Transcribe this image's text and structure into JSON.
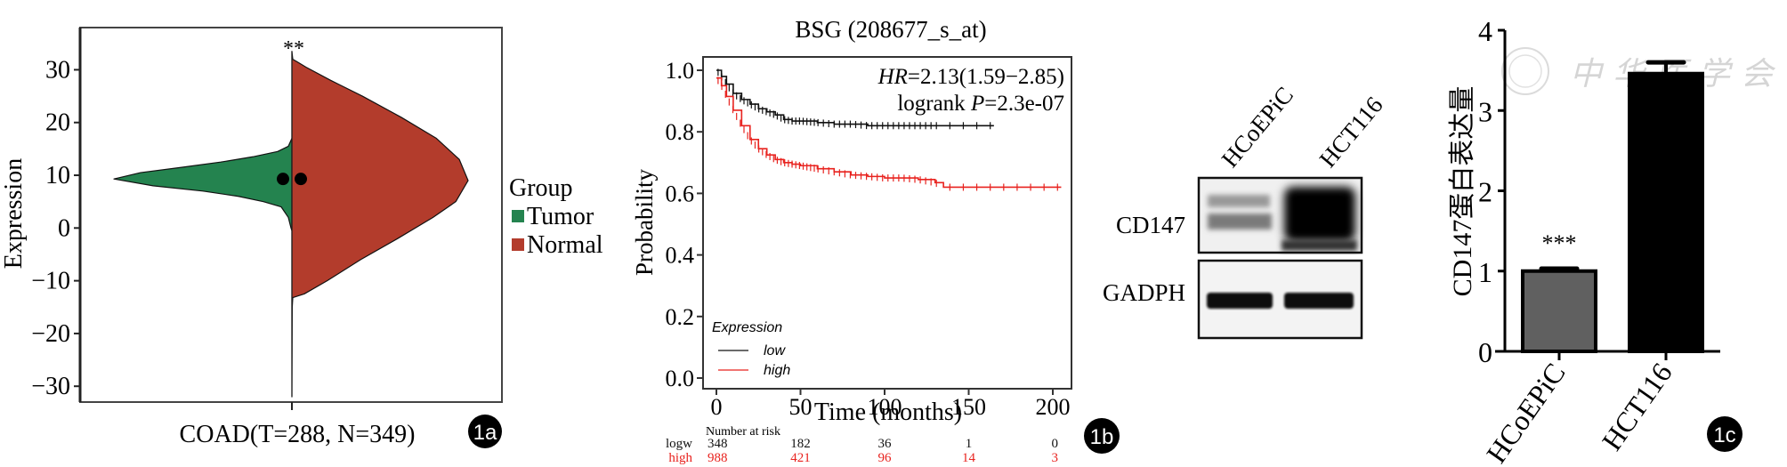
{
  "chart_data": [
    {
      "id": "1a",
      "type": "violin",
      "panel_label": "1a",
      "title": "",
      "xlabel": "COAD(T=288, N=349)",
      "ylabel": "Expression",
      "ylim": [
        -33,
        38
      ],
      "yticks": [
        30,
        20,
        10,
        0,
        -10,
        -20,
        -30
      ],
      "significance": "**",
      "legend": {
        "title": "Group",
        "position": "right",
        "entries": [
          {
            "label": "Tumor",
            "color": "#24834f"
          },
          {
            "label": "Normal",
            "color": "#b33c2c"
          }
        ]
      },
      "series": [
        {
          "name": "Tumor",
          "side": "left",
          "color": "#24834f",
          "median": 9.3,
          "density_profile": [
            [
              -0.5,
              0
            ],
            [
              0,
              0.005
            ],
            [
              2,
              0.02
            ],
            [
              4,
              0.06
            ],
            [
              5,
              0.16
            ],
            [
              6,
              0.3
            ],
            [
              7,
              0.5
            ],
            [
              8,
              0.78
            ],
            [
              9.3,
              1.0
            ],
            [
              10.5,
              0.85
            ],
            [
              11.5,
              0.62
            ],
            [
              12.5,
              0.4
            ],
            [
              13.5,
              0.22
            ],
            [
              14.5,
              0.08
            ],
            [
              15.5,
              0.02
            ],
            [
              17,
              0.0
            ]
          ]
        },
        {
          "name": "Normal",
          "side": "right",
          "color": "#b33c2c",
          "median": 9.3,
          "density_profile": [
            [
              -32,
              0
            ],
            [
              -15,
              0.002
            ],
            [
              -13.2,
              0.005
            ],
            [
              -12.5,
              0.07
            ],
            [
              -10,
              0.2
            ],
            [
              -6,
              0.39
            ],
            [
              -2,
              0.6
            ],
            [
              2,
              0.8
            ],
            [
              5,
              0.93
            ],
            [
              9,
              1.0
            ],
            [
              13,
              0.95
            ],
            [
              17,
              0.82
            ],
            [
              21,
              0.62
            ],
            [
              25,
              0.4
            ],
            [
              28,
              0.22
            ],
            [
              30.5,
              0.08
            ],
            [
              31.5,
              0.03
            ],
            [
              32,
              0.005
            ],
            [
              33.5,
              0
            ]
          ]
        }
      ]
    },
    {
      "id": "1b",
      "type": "line",
      "subtype": "kaplan-meier",
      "panel_label": "1b",
      "title": "BSG (208677_s_at)",
      "xlabel": "Time (months)",
      "ylabel": "Probability",
      "xlim": [
        -5,
        210
      ],
      "ylim": [
        -0.06,
        1.03
      ],
      "xticks": [
        0,
        50,
        100,
        150,
        200
      ],
      "yticks": [
        "0.0",
        "0.2",
        "0.4",
        "0.6",
        "0.8",
        "1.0"
      ],
      "annotations": {
        "hr_label": "HR",
        "hr_value": "=2.13(1.59−2.85)",
        "logrank_prefix": "logrank ",
        "p_label": "P",
        "p_value": "=2.3e-07"
      },
      "legend": {
        "title": "Expression",
        "position": "bottom-left",
        "entries": [
          {
            "label": "low",
            "color": "#111111"
          },
          {
            "label": "high",
            "color": "#e8231f"
          }
        ]
      },
      "series": [
        {
          "name": "low",
          "color": "#111111",
          "x": [
            0,
            3,
            6,
            10,
            15,
            20,
            25,
            30,
            35,
            40,
            45,
            50,
            60,
            70,
            80,
            90,
            100,
            120,
            140,
            165
          ],
          "y": [
            1.0,
            0.98,
            0.955,
            0.925,
            0.905,
            0.89,
            0.875,
            0.865,
            0.855,
            0.84,
            0.835,
            0.835,
            0.83,
            0.825,
            0.825,
            0.82,
            0.82,
            0.82,
            0.82,
            0.82
          ]
        },
        {
          "name": "high",
          "color": "#e8231f",
          "x": [
            0,
            3,
            6,
            10,
            15,
            20,
            25,
            30,
            35,
            40,
            45,
            50,
            60,
            70,
            80,
            90,
            100,
            110,
            120,
            130,
            135,
            150,
            175,
            205
          ],
          "y": [
            0.975,
            0.95,
            0.915,
            0.87,
            0.82,
            0.775,
            0.745,
            0.725,
            0.71,
            0.7,
            0.695,
            0.69,
            0.68,
            0.67,
            0.66,
            0.655,
            0.65,
            0.65,
            0.645,
            0.635,
            0.62,
            0.62,
            0.62,
            0.62
          ]
        }
      ],
      "risk_table": {
        "title": "Number at risk",
        "times": [
          0,
          50,
          100,
          150,
          200
        ],
        "rows": [
          {
            "label": "logw",
            "color": "#111111",
            "values": [
              "348",
              "182",
              "36",
              "1",
              "0"
            ]
          },
          {
            "label": "high",
            "color": "#e8231f",
            "values": [
              "988",
              "421",
              "96",
              "14",
              "3"
            ]
          }
        ]
      }
    },
    {
      "id": "1c",
      "type": "bar",
      "panel_label": "1c",
      "title": "",
      "xlabel": "",
      "ylabel": "CD147蛋白表达量",
      "ylim": [
        0,
        4
      ],
      "yticks": [
        0,
        1,
        2,
        3,
        4
      ],
      "categories": [
        "HCoEPiC",
        "HCT116"
      ],
      "values": [
        1.0,
        3.46
      ],
      "errors": [
        0.03,
        0.14
      ],
      "colors": [
        "#606060",
        "#000000"
      ],
      "significance": [
        {
          "category": "HCoEPiC",
          "label": "***"
        }
      ]
    }
  ],
  "western_blot": {
    "lanes": [
      "HCoEPiC",
      "HCT116"
    ],
    "rows": [
      {
        "label": "CD147"
      },
      {
        "label": "GADPH"
      }
    ]
  },
  "watermark": {
    "text": "中华医学会"
  }
}
